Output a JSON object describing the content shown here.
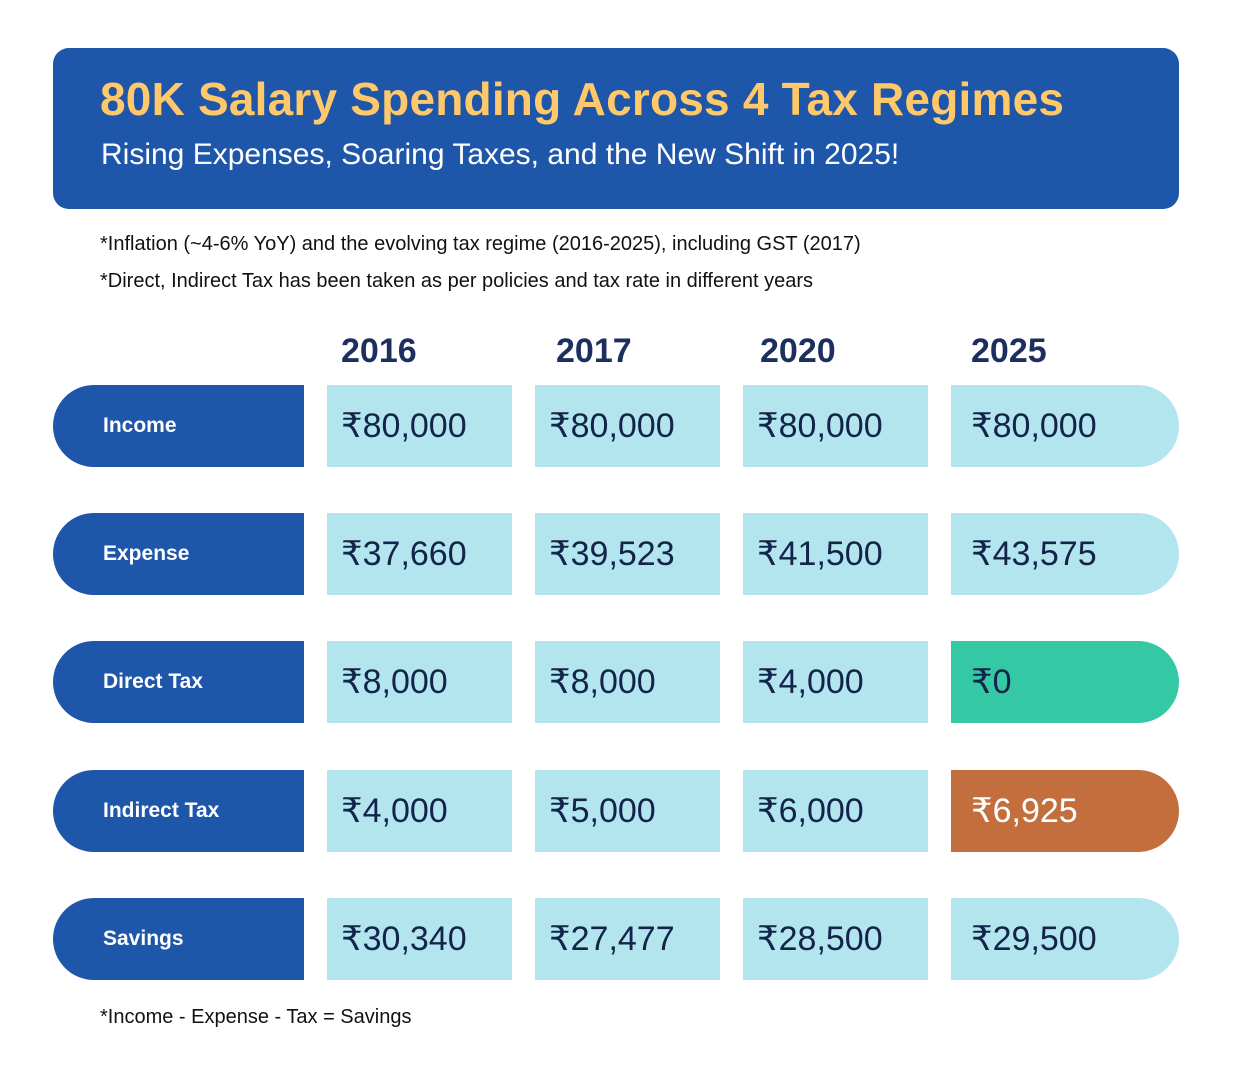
{
  "title": "80K Salary Spending Across 4 Tax Regimes",
  "subtitle": "Rising Expenses, Soaring Taxes, and the New Shift in 2025!",
  "notes": [
    "*Inflation (~4-6% YoY) and the evolving tax regime (2016-2025), including GST (2017)",
    "*Direct, Indirect Tax has been taken as per policies and tax rate in different years"
  ],
  "footnote": "*Income - Expense - Tax = Savings",
  "colors": {
    "banner": "#1e56a9",
    "title": "#ffc86a",
    "cell": "#b2e5ee",
    "highlight_green": "#34c8a4",
    "highlight_orange": "#c26f3d"
  },
  "chart_data": {
    "type": "table",
    "title": "80K Salary Spending Across 4 Tax Regimes",
    "columns": [
      "2016",
      "2017",
      "2020",
      "2025"
    ],
    "rows": [
      {
        "label": "Income",
        "values": [
          "₹80,000",
          "₹80,000",
          "₹80,000",
          "₹80,000"
        ]
      },
      {
        "label": "Expense",
        "values": [
          "₹37,660",
          "₹39,523",
          "₹41,500",
          "₹43,575"
        ]
      },
      {
        "label": "Direct Tax",
        "values": [
          "₹8,000",
          "₹8,000",
          "₹4,000",
          "₹0"
        ]
      },
      {
        "label": "Indirect Tax",
        "values": [
          "₹4,000",
          "₹5,000",
          "₹6,000",
          "₹6,925"
        ]
      },
      {
        "label": "Savings",
        "values": [
          "₹30,340",
          "₹27,477",
          "₹28,500",
          "₹29,500"
        ]
      }
    ]
  }
}
